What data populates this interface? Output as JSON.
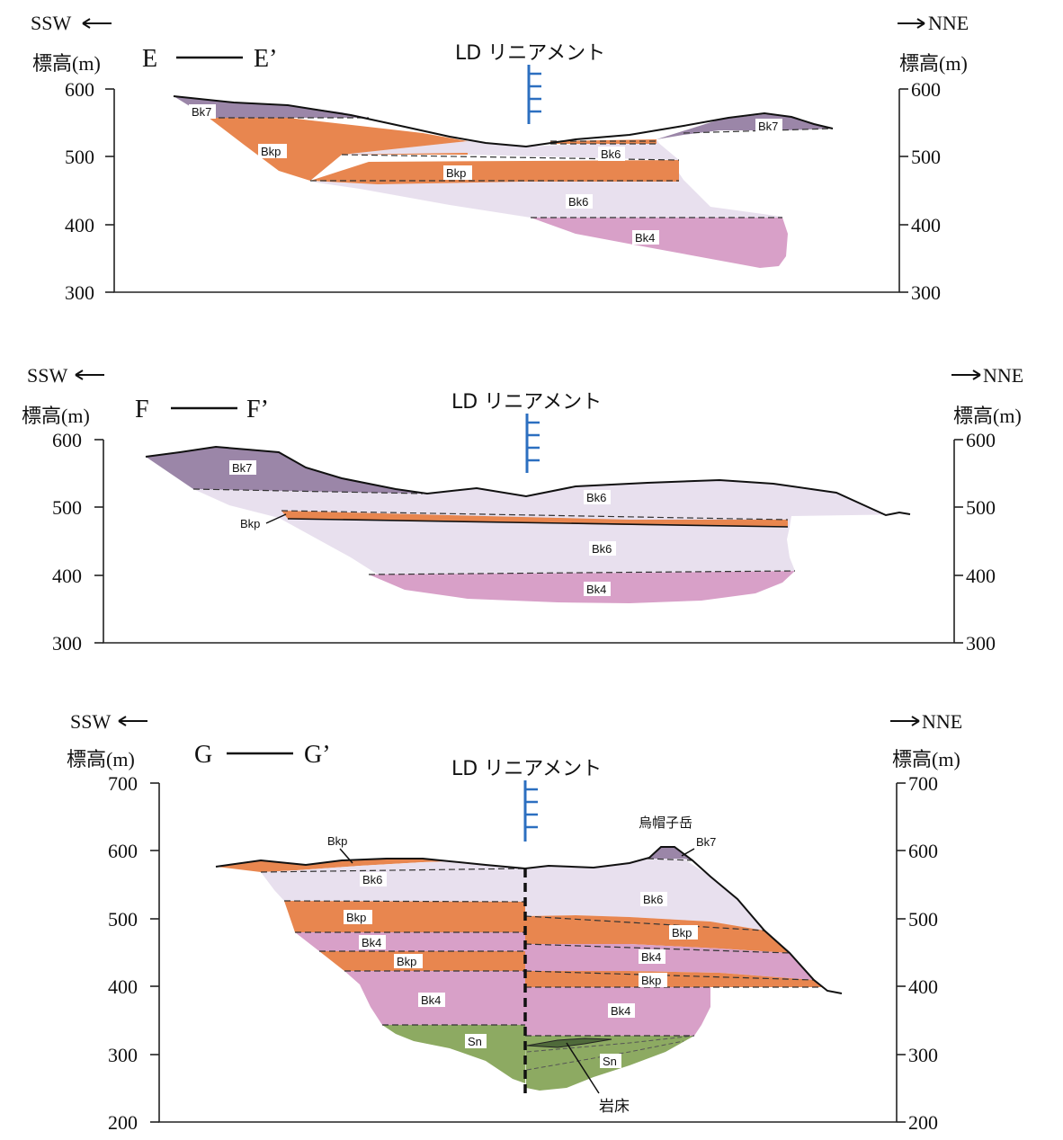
{
  "colors": {
    "Bk7": "#9b86a8",
    "Bkp": "#e8864f",
    "Bk6": "#e8e0ee",
    "Bk4": "#d8a0c8",
    "Sn": "#8daa62",
    "lineament": "#2c6fc0"
  },
  "direction": {
    "left": "SSW",
    "right": "NNE"
  },
  "elevation_label": "標高(m)",
  "lineament_label": "LD リニアメント",
  "sections": [
    {
      "id": "E",
      "title_left": "E",
      "title_right": "E’",
      "ticks_left": [
        "600",
        "500",
        "400",
        "300"
      ],
      "ticks_right": [
        "600",
        "500",
        "400",
        "300"
      ],
      "units": [
        "Bk7",
        "Bkp",
        "Bk6",
        "Bkp",
        "Bk6",
        "Bk4",
        "Bk7"
      ]
    },
    {
      "id": "F",
      "title_left": "F",
      "title_right": "F’",
      "ticks_left": [
        "600",
        "500",
        "400",
        "300"
      ],
      "ticks_right": [
        "600",
        "500",
        "400",
        "300"
      ],
      "units": [
        "Bk7",
        "Bk6",
        "Bkp",
        "Bk6",
        "Bk4"
      ]
    },
    {
      "id": "G",
      "title_left": "G",
      "title_right": "G’",
      "ticks_left": [
        "700",
        "600",
        "500",
        "400",
        "300",
        "200"
      ],
      "ticks_right": [
        "700",
        "600",
        "500",
        "400",
        "300",
        "200"
      ],
      "units_left": [
        "Bkp",
        "Bk6",
        "Bkp",
        "Bk4",
        "Bkp",
        "Bk4",
        "Sn"
      ],
      "units_right": [
        "Bk7",
        "Bk6",
        "Bkp",
        "Bk4",
        "Bkp",
        "Bk4",
        "Sn"
      ],
      "peak_name": "烏帽子岳",
      "sill_label": "岩床"
    }
  ]
}
